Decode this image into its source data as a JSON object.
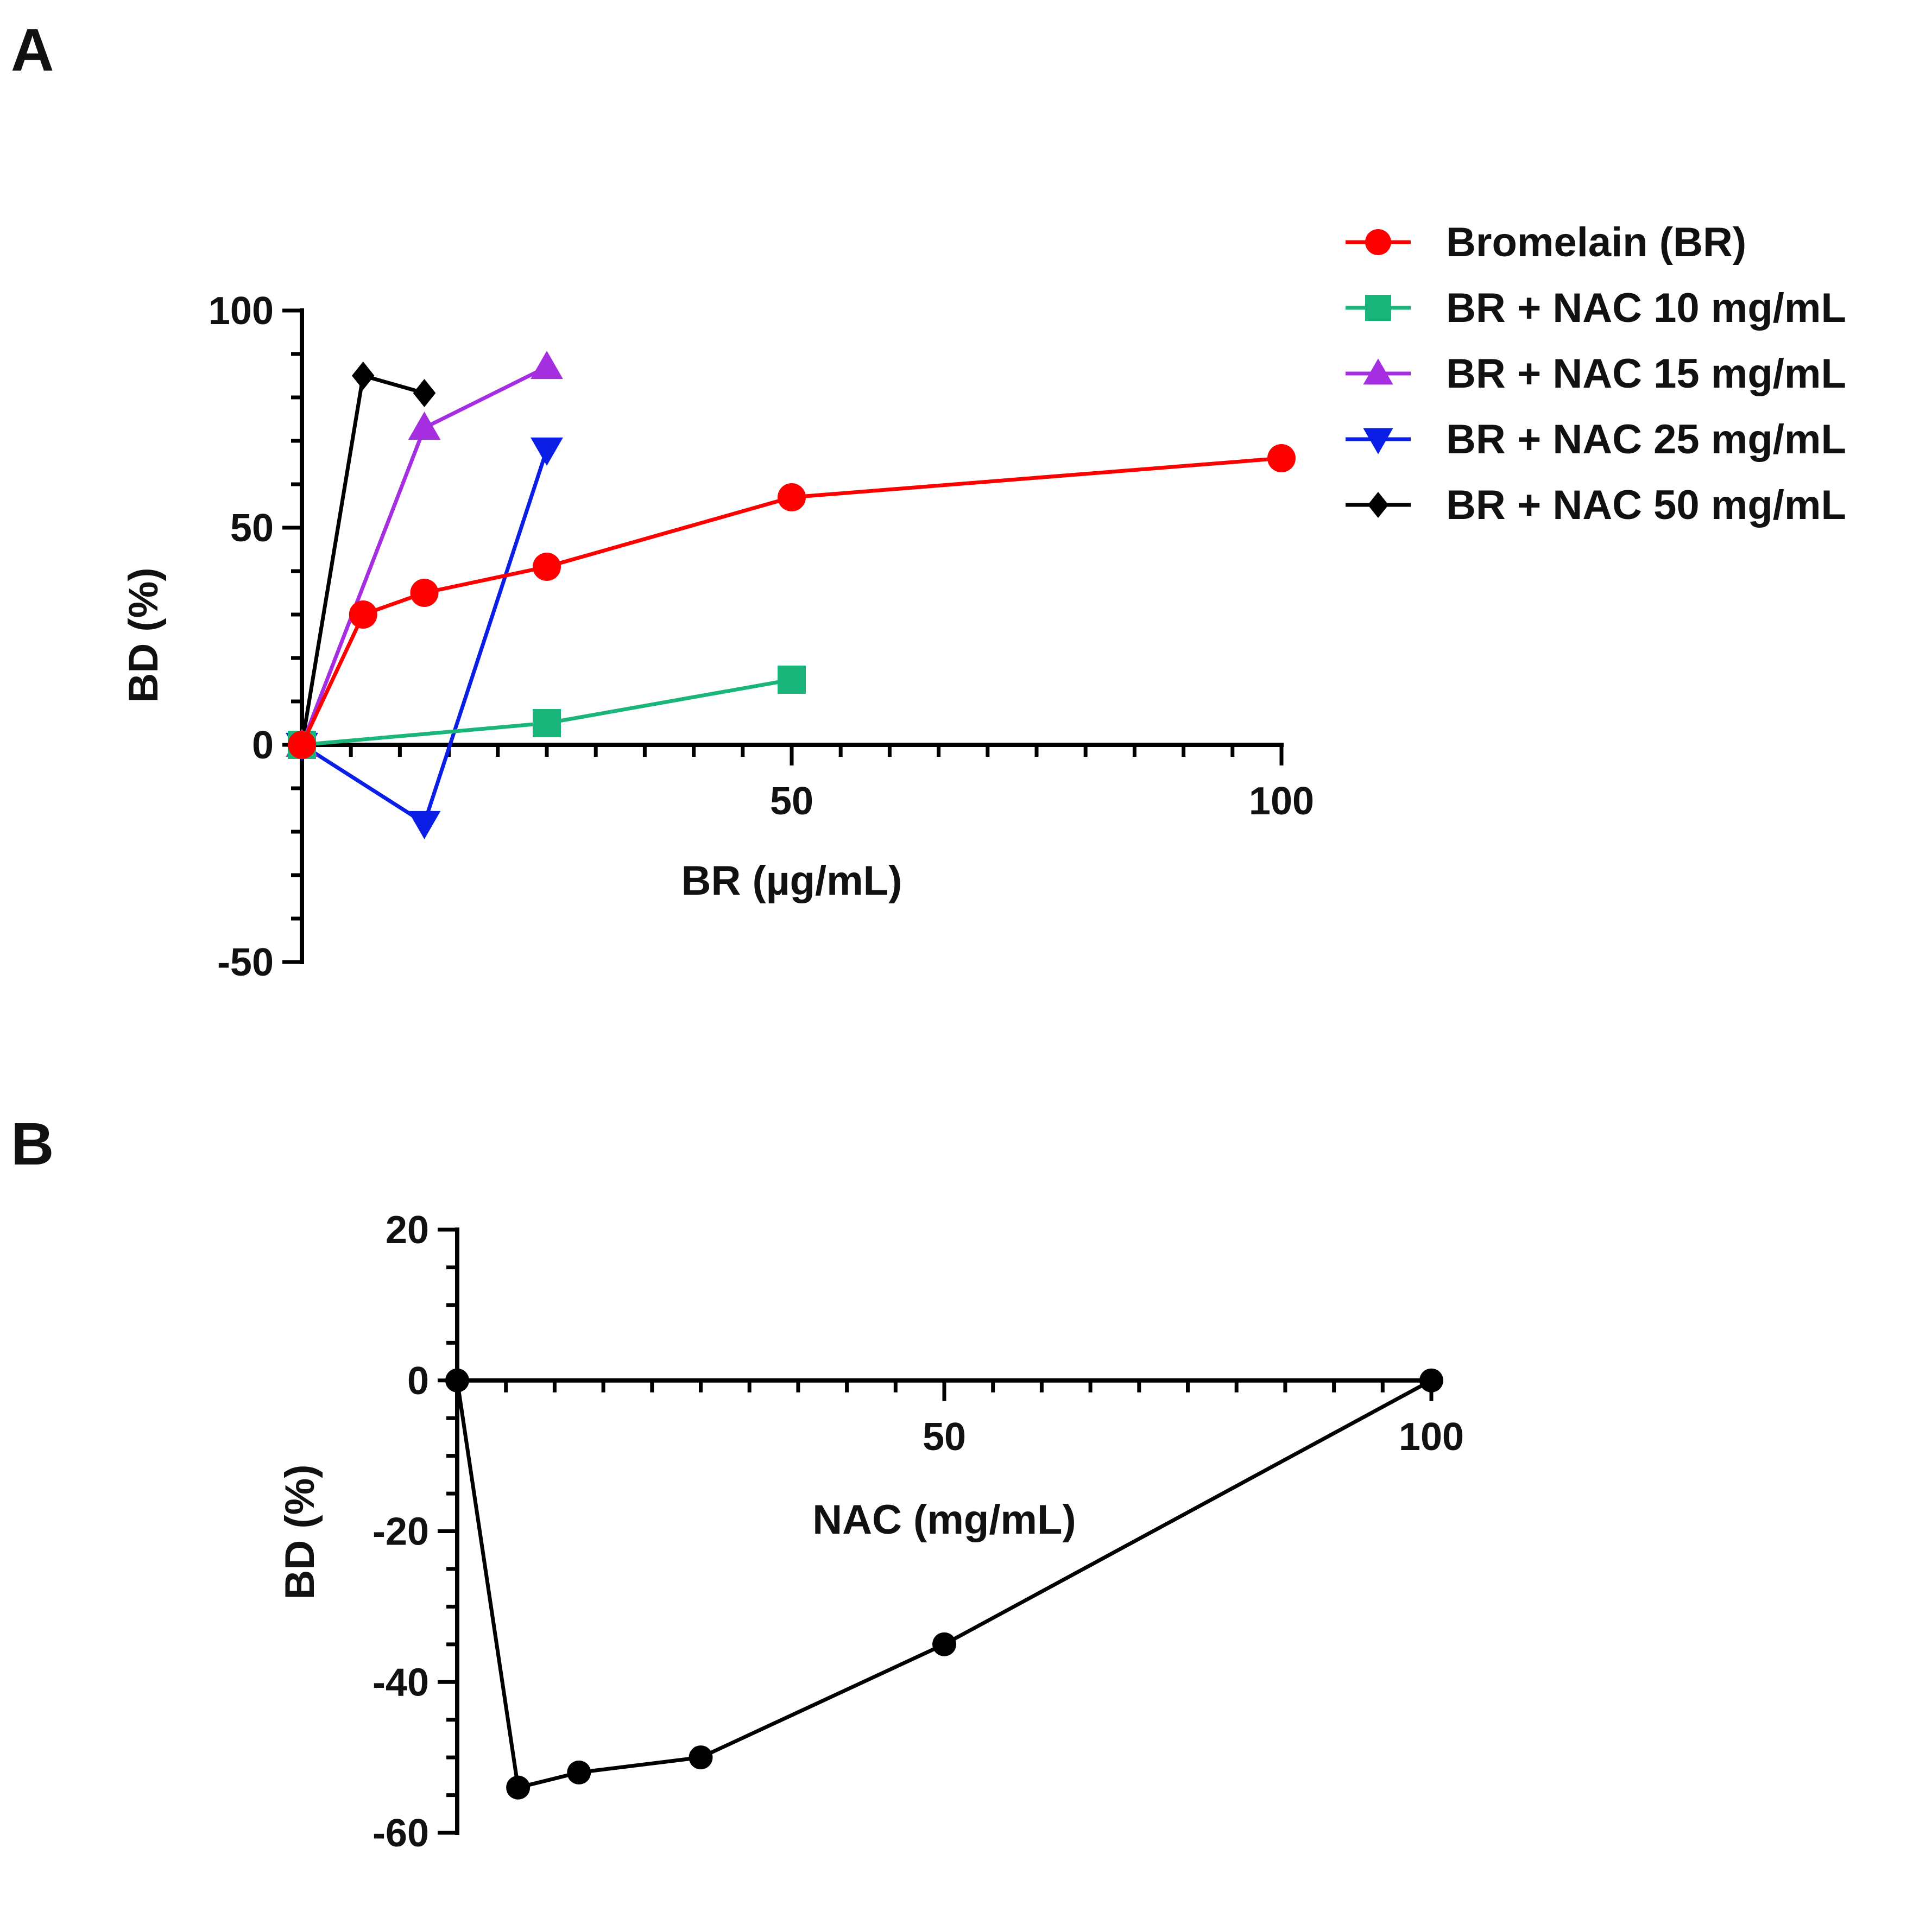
{
  "chart_data": [
    {
      "panel": "A",
      "type": "line",
      "xlabel": "BR (µg/mL)",
      "ylabel": "BD (%)",
      "xlim": [
        0,
        100
      ],
      "ylim": [
        -50,
        100
      ],
      "xticks": [
        50,
        100
      ],
      "xtick_labels": [
        "50",
        "100"
      ],
      "yticks": [
        100,
        50,
        0,
        -50
      ],
      "ytick_labels": [
        "100",
        "50",
        "0",
        "-50"
      ],
      "x_minor_step": 5,
      "y_minor_step": 10,
      "legend_position": "top-right",
      "series": [
        {
          "name": "Bromelain (BR)",
          "color": "#ff0000",
          "marker": "circle",
          "x": [
            0,
            6.25,
            12.5,
            25,
            50,
            100
          ],
          "y": [
            0,
            30,
            35,
            41,
            57,
            66
          ]
        },
        {
          "name": "BR + NAC 10 mg/mL",
          "color": "#19b57a",
          "marker": "square",
          "x": [
            0,
            25,
            50
          ],
          "y": [
            0,
            5,
            15
          ]
        },
        {
          "name": "BR + NAC 15 mg/mL",
          "color": "#a52fe0",
          "marker": "triangle-up",
          "x": [
            0,
            12.5,
            25
          ],
          "y": [
            0,
            73,
            87
          ]
        },
        {
          "name": "BR + NAC 25 mg/mL",
          "color": "#0a1ee6",
          "marker": "triangle-down",
          "x": [
            0,
            12.5,
            25
          ],
          "y": [
            0,
            -18,
            68
          ]
        },
        {
          "name": "BR + NAC 50 mg/mL",
          "color": "#000000",
          "marker": "diamond",
          "x": [
            0,
            6.25,
            12.5
          ],
          "y": [
            0,
            85,
            81
          ]
        }
      ]
    },
    {
      "panel": "B",
      "type": "line",
      "xlabel": "NAC (mg/mL)",
      "ylabel": "BD (%)",
      "xlim": [
        0,
        100
      ],
      "ylim": [
        -60,
        20
      ],
      "xticks": [
        50,
        100
      ],
      "xtick_labels": [
        "50",
        "100"
      ],
      "yticks": [
        20,
        0,
        -20,
        -40,
        -60
      ],
      "ytick_labels": [
        "20",
        "0",
        "-20",
        "-40",
        "-60"
      ],
      "x_minor_step": 5,
      "y_minor_step": 5,
      "series": [
        {
          "name": "NAC",
          "color": "#000000",
          "marker": "circle",
          "x": [
            0,
            6.25,
            12.5,
            25,
            50,
            100
          ],
          "y": [
            0,
            -54,
            -52,
            -50,
            -35,
            0
          ]
        }
      ]
    }
  ]
}
